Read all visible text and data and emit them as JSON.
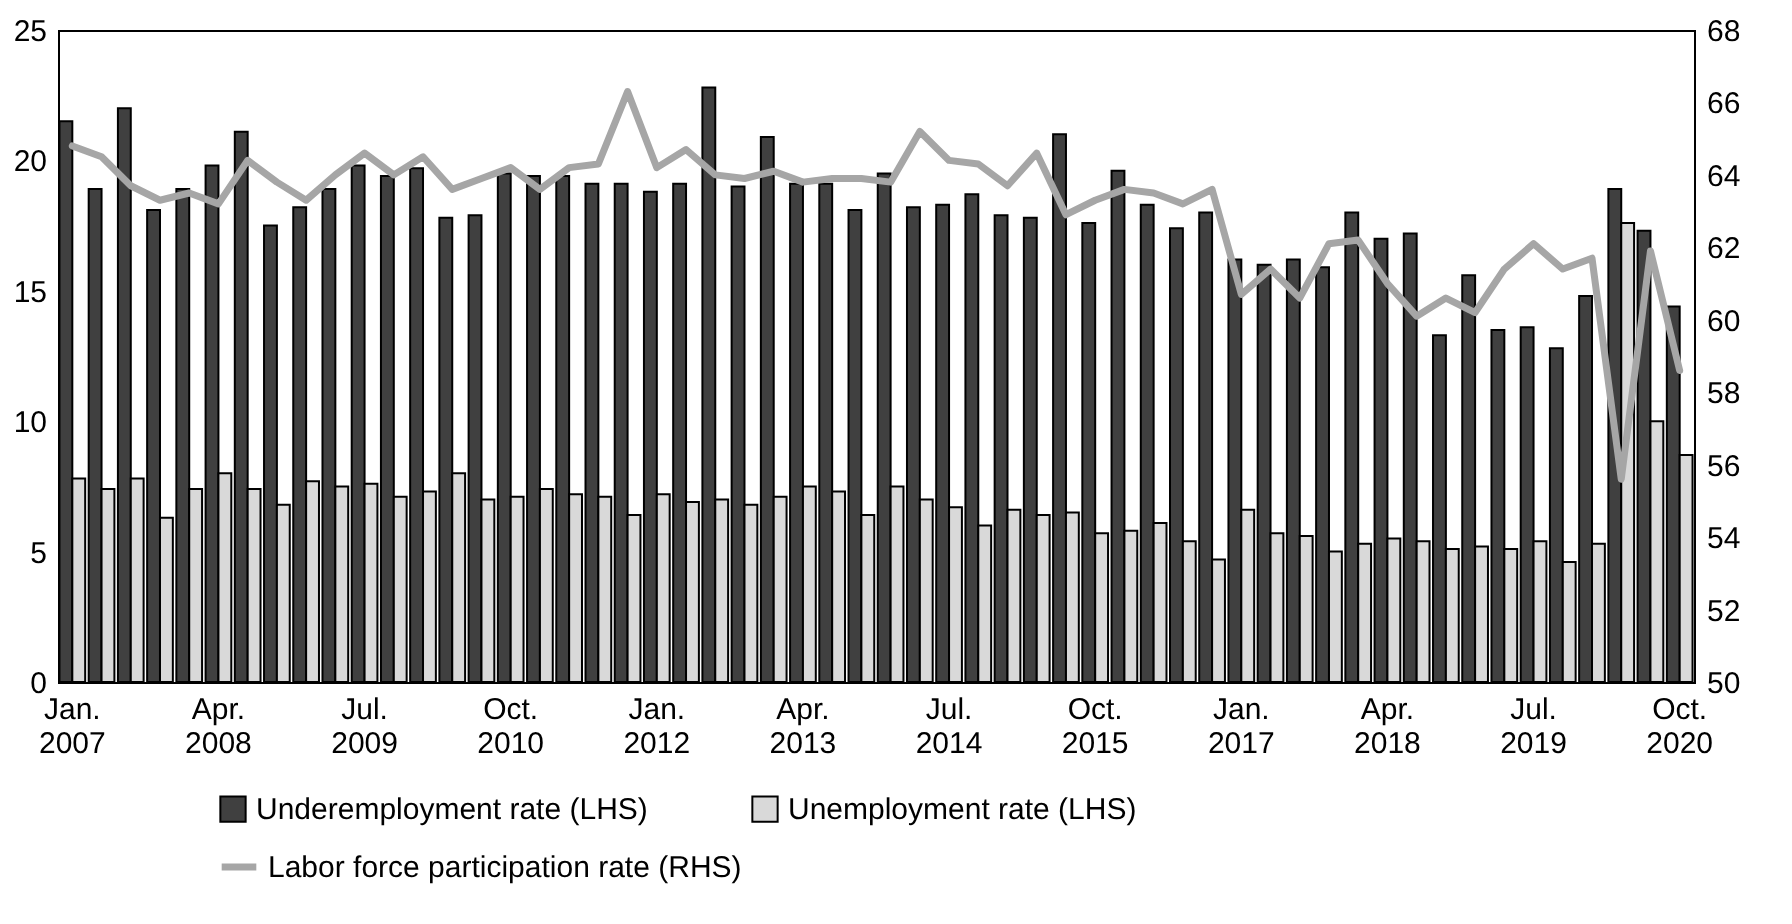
{
  "chart_data": {
    "type": "bar",
    "categories": [
      "Jan.\n2007",
      null,
      null,
      null,
      null,
      "Apr.\n2008",
      null,
      null,
      null,
      null,
      "Jul.\n2009",
      null,
      null,
      null,
      null,
      "Oct.\n2010",
      null,
      null,
      null,
      null,
      "Jan.\n2012",
      null,
      null,
      null,
      null,
      "Apr.\n2013",
      null,
      null,
      null,
      null,
      "Jul.\n2014",
      null,
      null,
      null,
      null,
      "Oct.\n2015",
      null,
      null,
      null,
      null,
      "Jan.\n2017",
      null,
      null,
      null,
      null,
      "Apr.\n2018",
      null,
      null,
      null,
      null,
      "Jul.\n2019",
      null,
      null,
      null,
      null,
      "Oct.\n2020"
    ],
    "series": [
      {
        "name": "Underemployment rate (LHS)",
        "type": "bar",
        "color": "#404040",
        "values": [
          21.5,
          18.9,
          22.0,
          18.1,
          18.9,
          19.8,
          21.1,
          17.5,
          18.2,
          18.9,
          19.8,
          19.4,
          19.7,
          17.8,
          17.9,
          19.5,
          19.4,
          19.4,
          19.1,
          19.1,
          18.8,
          19.1,
          22.8,
          19.0,
          20.9,
          19.1,
          19.1,
          18.1,
          19.5,
          18.2,
          18.3,
          18.7,
          17.9,
          17.8,
          21.0,
          17.6,
          19.6,
          18.3,
          17.4,
          18.0,
          16.2,
          16.0,
          16.2,
          15.9,
          18.0,
          17.0,
          17.2,
          13.3,
          15.6,
          13.5,
          13.6,
          12.8,
          14.8,
          18.9,
          17.3,
          14.4
        ]
      },
      {
        "name": "Unemployment rate (LHS)",
        "type": "bar",
        "color": "#d9d9d9",
        "values": [
          7.8,
          7.4,
          7.8,
          6.3,
          7.4,
          8.0,
          7.4,
          6.8,
          7.7,
          7.5,
          7.6,
          7.1,
          7.3,
          8.0,
          7.0,
          7.1,
          7.4,
          7.2,
          7.1,
          6.4,
          7.2,
          6.9,
          7.0,
          6.8,
          7.1,
          7.5,
          7.3,
          6.4,
          7.5,
          7.0,
          6.7,
          6.0,
          6.6,
          6.4,
          6.5,
          5.7,
          5.8,
          6.1,
          5.4,
          4.7,
          6.6,
          5.7,
          5.6,
          5.0,
          5.3,
          5.5,
          5.4,
          5.1,
          5.2,
          5.1,
          5.4,
          4.6,
          5.3,
          17.6,
          10.0,
          8.7
        ]
      },
      {
        "name": "Labor force participation rate (RHS)",
        "type": "line",
        "axis": "y2",
        "color": "#a6a6a6",
        "values": [
          64.8,
          64.5,
          63.7,
          63.3,
          63.5,
          63.2,
          64.4,
          63.8,
          63.3,
          64.0,
          64.6,
          64.0,
          64.5,
          63.6,
          63.9,
          64.2,
          63.6,
          64.2,
          64.3,
          66.3,
          64.2,
          64.7,
          64.0,
          63.9,
          64.1,
          63.8,
          63.9,
          63.9,
          63.8,
          65.2,
          64.4,
          64.3,
          63.7,
          64.6,
          62.9,
          63.3,
          63.6,
          63.5,
          63.2,
          63.6,
          60.7,
          61.4,
          60.6,
          62.1,
          62.2,
          61.0,
          60.1,
          60.6,
          60.2,
          61.4,
          62.1,
          61.4,
          61.7,
          55.6,
          61.9,
          58.6
        ]
      }
    ],
    "ylim": [
      0,
      25
    ],
    "yticks": [
      0,
      5,
      10,
      15,
      20,
      25
    ],
    "y2lim": [
      50,
      68
    ],
    "y2ticks": [
      50,
      52,
      54,
      56,
      58,
      60,
      62,
      64,
      66,
      68
    ],
    "grid": false,
    "legend": "bottom"
  }
}
